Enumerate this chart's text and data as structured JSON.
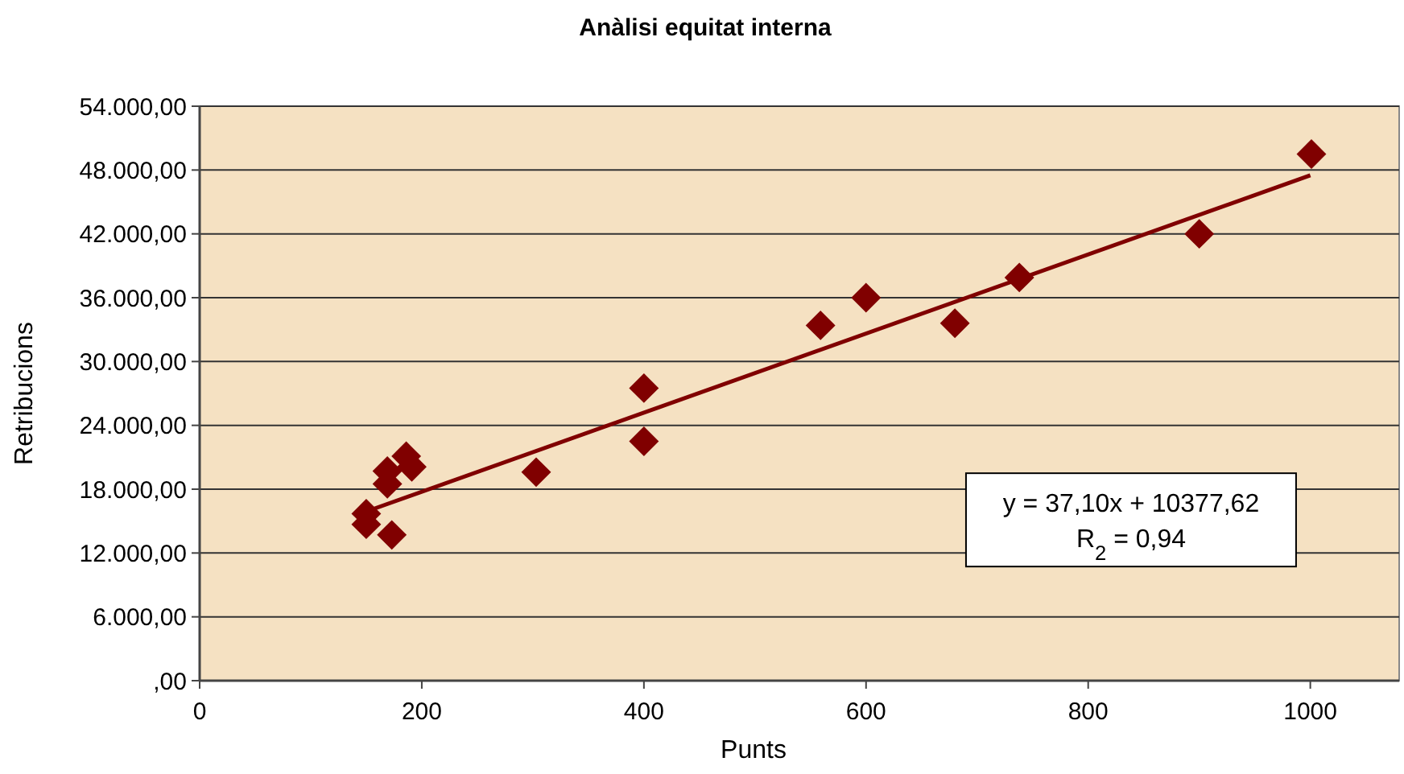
{
  "chart_data": {
    "type": "scatter",
    "title": "Anàlisi equitat interna",
    "xlabel": "Punts",
    "ylabel": "Retribucions",
    "xlim": [
      0,
      1080
    ],
    "xticks": [
      0,
      200,
      400,
      600,
      800,
      1000
    ],
    "ylim": [
      0,
      54000
    ],
    "yticks": [
      {
        "value": 0,
        "label": ",00"
      },
      {
        "value": 6000,
        "label": "6.000,00"
      },
      {
        "value": 12000,
        "label": "12.000,00"
      },
      {
        "value": 18000,
        "label": "18.000,00"
      },
      {
        "value": 24000,
        "label": "24.000,00"
      },
      {
        "value": 30000,
        "label": "30.000,00"
      },
      {
        "value": 36000,
        "label": "36.000,00"
      },
      {
        "value": 42000,
        "label": "42.000,00"
      },
      {
        "value": 48000,
        "label": "48.000,00"
      },
      {
        "value": 54000,
        "label": "54.000,00"
      }
    ],
    "grid": "y",
    "marker": "diamond",
    "series": [
      {
        "color": "#800000",
        "x": [
          150,
          150,
          169,
          169,
          186,
          191,
          173,
          303,
          400,
          400,
          559,
          600,
          680,
          738,
          900,
          1001
        ],
        "values": [
          15700,
          14700,
          19700,
          18500,
          21100,
          20100,
          13700,
          19600,
          27500,
          22500,
          33400,
          36000,
          33600,
          37900,
          42000,
          49500
        ]
      },
      {
        "type": "line",
        "color": "#800000",
        "x": [
          150,
          1000
        ],
        "values": [
          15900,
          47500
        ],
        "line_style": "solid",
        "marker": "none"
      }
    ],
    "annotations": [
      "y = 37,10x + 10377,62",
      "R$_{2}$ = 0,94"
    ]
  }
}
